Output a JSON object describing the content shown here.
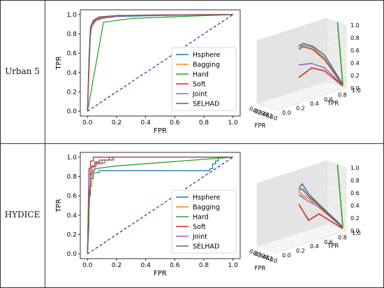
{
  "rows": [
    {
      "label": "Urban 5",
      "chart_data": {
        "type": "line",
        "xlabel": "FPR",
        "ylabel": "TPR",
        "xlim": [
          0,
          1
        ],
        "ylim": [
          0,
          1
        ],
        "xticks": [
          "0.0",
          "0.2",
          "0.4",
          "0.6",
          "0.8",
          "1.0"
        ],
        "yticks": [
          "0.0",
          "0.2",
          "0.4",
          "0.6",
          "0.8",
          "1.0"
        ],
        "legend_position": "lower-right",
        "reference_line": "diagonal dashed",
        "series": [
          {
            "name": "Hsphere",
            "color": "#1f77b4",
            "points": [
              [
                0,
                0
              ],
              [
                0.01,
                0.4
              ],
              [
                0.02,
                0.78
              ],
              [
                0.03,
                0.88
              ],
              [
                0.06,
                0.94
              ],
              [
                0.1,
                0.96
              ],
              [
                0.2,
                0.98
              ],
              [
                0.5,
                0.99
              ],
              [
                1,
                1
              ]
            ]
          },
          {
            "name": "Bagging",
            "color": "#ff7f0e",
            "points": [
              [
                0,
                0
              ],
              [
                0.01,
                0.45
              ],
              [
                0.02,
                0.82
              ],
              [
                0.04,
                0.91
              ],
              [
                0.08,
                0.96
              ],
              [
                0.2,
                0.985
              ],
              [
                0.5,
                0.995
              ],
              [
                1,
                1
              ]
            ]
          },
          {
            "name": "Hard",
            "color": "#2ca02c",
            "points": [
              [
                0,
                0
              ],
              [
                0.11,
                0.92
              ],
              [
                0.3,
                0.96
              ],
              [
                1,
                1
              ]
            ]
          },
          {
            "name": "Soft",
            "color": "#d62728",
            "points": [
              [
                0,
                0
              ],
              [
                0.01,
                0.5
              ],
              [
                0.02,
                0.85
              ],
              [
                0.04,
                0.93
              ],
              [
                0.08,
                0.97
              ],
              [
                0.2,
                0.985
              ],
              [
                0.5,
                0.995
              ],
              [
                1,
                1
              ]
            ]
          },
          {
            "name": "Joint",
            "color": "#9467bd",
            "points": [
              [
                0,
                0
              ],
              [
                0.01,
                0.48
              ],
              [
                0.02,
                0.84
              ],
              [
                0.04,
                0.92
              ],
              [
                0.08,
                0.965
              ],
              [
                0.2,
                0.985
              ],
              [
                0.5,
                0.995
              ],
              [
                1,
                1
              ]
            ]
          },
          {
            "name": "SELHAD",
            "color": "#8c564b",
            "points": [
              [
                0,
                0
              ],
              [
                0.01,
                0.55
              ],
              [
                0.02,
                0.87
              ],
              [
                0.04,
                0.94
              ],
              [
                0.08,
                0.975
              ],
              [
                0.2,
                0.99
              ],
              [
                0.5,
                0.997
              ],
              [
                1,
                1
              ]
            ]
          }
        ]
      },
      "surface_3d": {
        "xlabel": "FPR",
        "ylabel": "TPR",
        "xticks": [
          "0.0",
          "0.2",
          "0.4",
          "0.6",
          "0.8",
          "1.0"
        ],
        "yticks": [
          "0.0",
          "0.2",
          "0.4",
          "0.6",
          "0.8",
          "1.0"
        ],
        "zticks": [
          "0.0",
          "0.2",
          "0.4",
          "0.6",
          "0.8",
          "1.0"
        ]
      }
    },
    {
      "label": "HYDICE",
      "chart_data": {
        "type": "line",
        "xlabel": "FPR",
        "ylabel": "TPR",
        "xlim": [
          0,
          1
        ],
        "ylim": [
          0,
          1
        ],
        "xticks": [
          "0.0",
          "0.2",
          "0.4",
          "0.6",
          "0.8",
          "1.0"
        ],
        "yticks": [
          "0.0",
          "0.2",
          "0.4",
          "0.6",
          "0.8",
          "1.0"
        ],
        "legend_position": "lower-right",
        "reference_line": "diagonal dashed",
        "series": [
          {
            "name": "Hsphere",
            "color": "#1f77b4",
            "points": [
              [
                0,
                0
              ],
              [
                0.01,
                0.3
              ],
              [
                0.01,
                0.6
              ],
              [
                0.02,
                0.6
              ],
              [
                0.02,
                0.78
              ],
              [
                0.04,
                0.78
              ],
              [
                0.04,
                0.84
              ],
              [
                0.08,
                0.84
              ],
              [
                0.08,
                0.86
              ],
              [
                0.84,
                0.86
              ],
              [
                0.84,
                0.88
              ],
              [
                0.86,
                0.88
              ],
              [
                0.86,
                0.93
              ],
              [
                0.88,
                0.93
              ],
              [
                0.88,
                0.96
              ],
              [
                0.9,
                0.96
              ],
              [
                0.9,
                1
              ],
              [
                1,
                1
              ]
            ]
          },
          {
            "name": "Bagging",
            "color": "#ff7f0e",
            "points": [
              [
                0,
                0
              ],
              [
                0.01,
                0.7
              ],
              [
                0.03,
                0.7
              ],
              [
                0.03,
                0.86
              ],
              [
                0.05,
                0.86
              ],
              [
                0.05,
                0.93
              ],
              [
                0.1,
                0.93
              ],
              [
                0.1,
                0.97
              ],
              [
                0.17,
                0.97
              ],
              [
                0.17,
                1
              ],
              [
                1,
                1
              ]
            ]
          },
          {
            "name": "Hard",
            "color": "#2ca02c",
            "points": [
              [
                0,
                0
              ],
              [
                0.02,
                0.82
              ],
              [
                0.05,
                0.88
              ],
              [
                0.2,
                0.91
              ],
              [
                1,
                1
              ]
            ]
          },
          {
            "name": "Soft",
            "color": "#d62728",
            "points": [
              [
                0,
                0
              ],
              [
                0.01,
                0.88
              ],
              [
                0.02,
                0.88
              ],
              [
                0.02,
                0.96
              ],
              [
                0.04,
                0.96
              ],
              [
                0.04,
                1
              ],
              [
                1,
                1
              ]
            ]
          },
          {
            "name": "Joint",
            "color": "#9467bd",
            "points": [
              [
                0,
                0
              ],
              [
                0.01,
                0.82
              ],
              [
                0.03,
                0.82
              ],
              [
                0.03,
                0.91
              ],
              [
                0.06,
                0.91
              ],
              [
                0.06,
                0.94
              ],
              [
                0.12,
                0.94
              ],
              [
                0.12,
                0.97
              ],
              [
                0.18,
                0.97
              ],
              [
                0.18,
                1
              ],
              [
                1,
                1
              ]
            ]
          },
          {
            "name": "SELHAD",
            "color": "#8c564b",
            "points": [
              [
                0,
                0
              ],
              [
                0.01,
                0.66
              ],
              [
                0.02,
                0.66
              ],
              [
                0.02,
                0.9
              ],
              [
                0.05,
                0.9
              ],
              [
                0.05,
                0.95
              ],
              [
                0.08,
                0.95
              ],
              [
                0.08,
                0.97
              ],
              [
                0.15,
                0.97
              ],
              [
                0.15,
                1
              ],
              [
                1,
                1
              ]
            ]
          }
        ]
      },
      "surface_3d": {
        "xlabel": "FPR",
        "ylabel": "TPR",
        "xticks": [
          "0.0",
          "0.2",
          "0.4",
          "0.6",
          "0.8",
          "1.0"
        ],
        "yticks": [
          "0.0",
          "0.2",
          "0.4",
          "0.6",
          "0.8",
          "1.0"
        ],
        "zticks": [
          "0.0",
          "0.2",
          "0.4",
          "0.6",
          "0.8",
          "1.0"
        ]
      }
    }
  ]
}
